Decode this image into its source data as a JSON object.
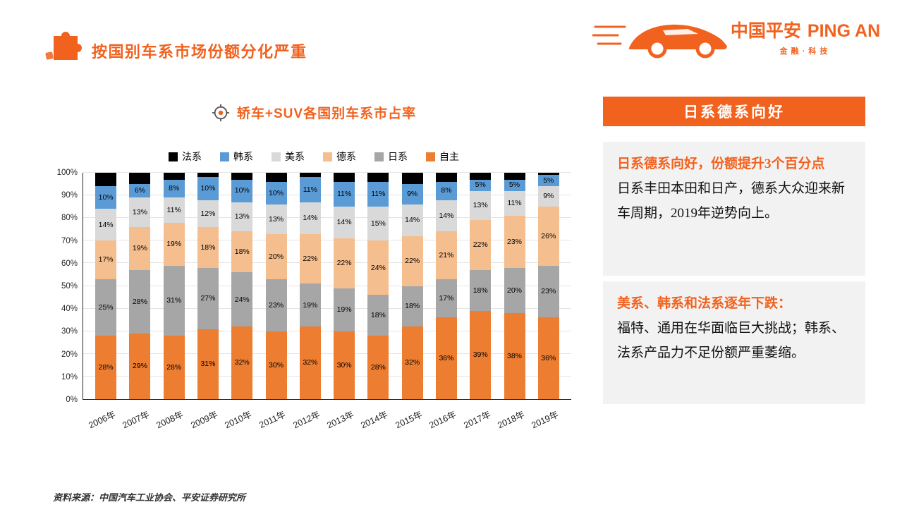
{
  "page": {
    "title": "按国别车系市场份额分化严重",
    "source_note": "资料来源：中国汽车工业协会、平安证券研究所"
  },
  "brand": {
    "logo_cn": "中国平安",
    "logo_en": "PING AN",
    "logo_sub": "金融·科技",
    "accent": "#F2621F"
  },
  "chart": {
    "title": "轿车+SUV各国别车系市占率"
  },
  "chart_data": {
    "type": "bar",
    "stacked": true,
    "title": "轿车+SUV各国别车系市占率",
    "categories": [
      "2006年",
      "2007年",
      "2008年",
      "2009年",
      "2010年",
      "2011年",
      "2012年",
      "2013年",
      "2014年",
      "2015年",
      "2016年",
      "2017年",
      "2018年",
      "2019年"
    ],
    "series": [
      {
        "name": "自主",
        "color": "#ED7D31",
        "label_visible": true,
        "values": [
          28,
          29,
          28,
          31,
          32,
          30,
          32,
          30,
          28,
          32,
          36,
          39,
          38,
          36
        ]
      },
      {
        "name": "日系",
        "color": "#A6A6A6",
        "label_visible": true,
        "values": [
          25,
          28,
          31,
          27,
          24,
          23,
          19,
          19,
          18,
          18,
          17,
          18,
          20,
          23
        ]
      },
      {
        "name": "德系",
        "color": "#F5BE8E",
        "label_visible": true,
        "values": [
          17,
          19,
          19,
          18,
          18,
          20,
          22,
          22,
          24,
          22,
          21,
          22,
          23,
          26
        ]
      },
      {
        "name": "美系",
        "color": "#D9D9D9",
        "label_visible": true,
        "values": [
          14,
          13,
          11,
          12,
          13,
          13,
          14,
          14,
          15,
          14,
          14,
          13,
          11,
          9
        ]
      },
      {
        "name": "韩系",
        "color": "#5B9BD5",
        "label_visible": true,
        "values": [
          10,
          6,
          8,
          10,
          10,
          10,
          11,
          11,
          11,
          9,
          8,
          5,
          5,
          5
        ]
      },
      {
        "name": "法系",
        "color": "#000000",
        "label_visible": false,
        "values": [
          6,
          5,
          3,
          2,
          3,
          4,
          2,
          4,
          4,
          5,
          4,
          3,
          3,
          1
        ]
      }
    ],
    "legend_order": [
      "法系",
      "韩系",
      "美系",
      "德系",
      "日系",
      "自主"
    ],
    "legend_position": "top",
    "ylim": [
      0,
      100
    ],
    "ytick_step": 10,
    "ytick_suffix": "%",
    "grid": true
  },
  "sidebar": {
    "header": "日系德系向好",
    "blocks": [
      {
        "heading": "日系德系向好，份额提升3个百分点",
        "body": "日系丰田本田和日产，德系大众迎来新车周期，2019年逆势向上。"
      },
      {
        "heading": "美系、韩系和法系逐年下跌：",
        "body": "福特、通用在华面临巨大挑战；韩系、法系产品力不足份额严重萎缩。"
      }
    ]
  }
}
